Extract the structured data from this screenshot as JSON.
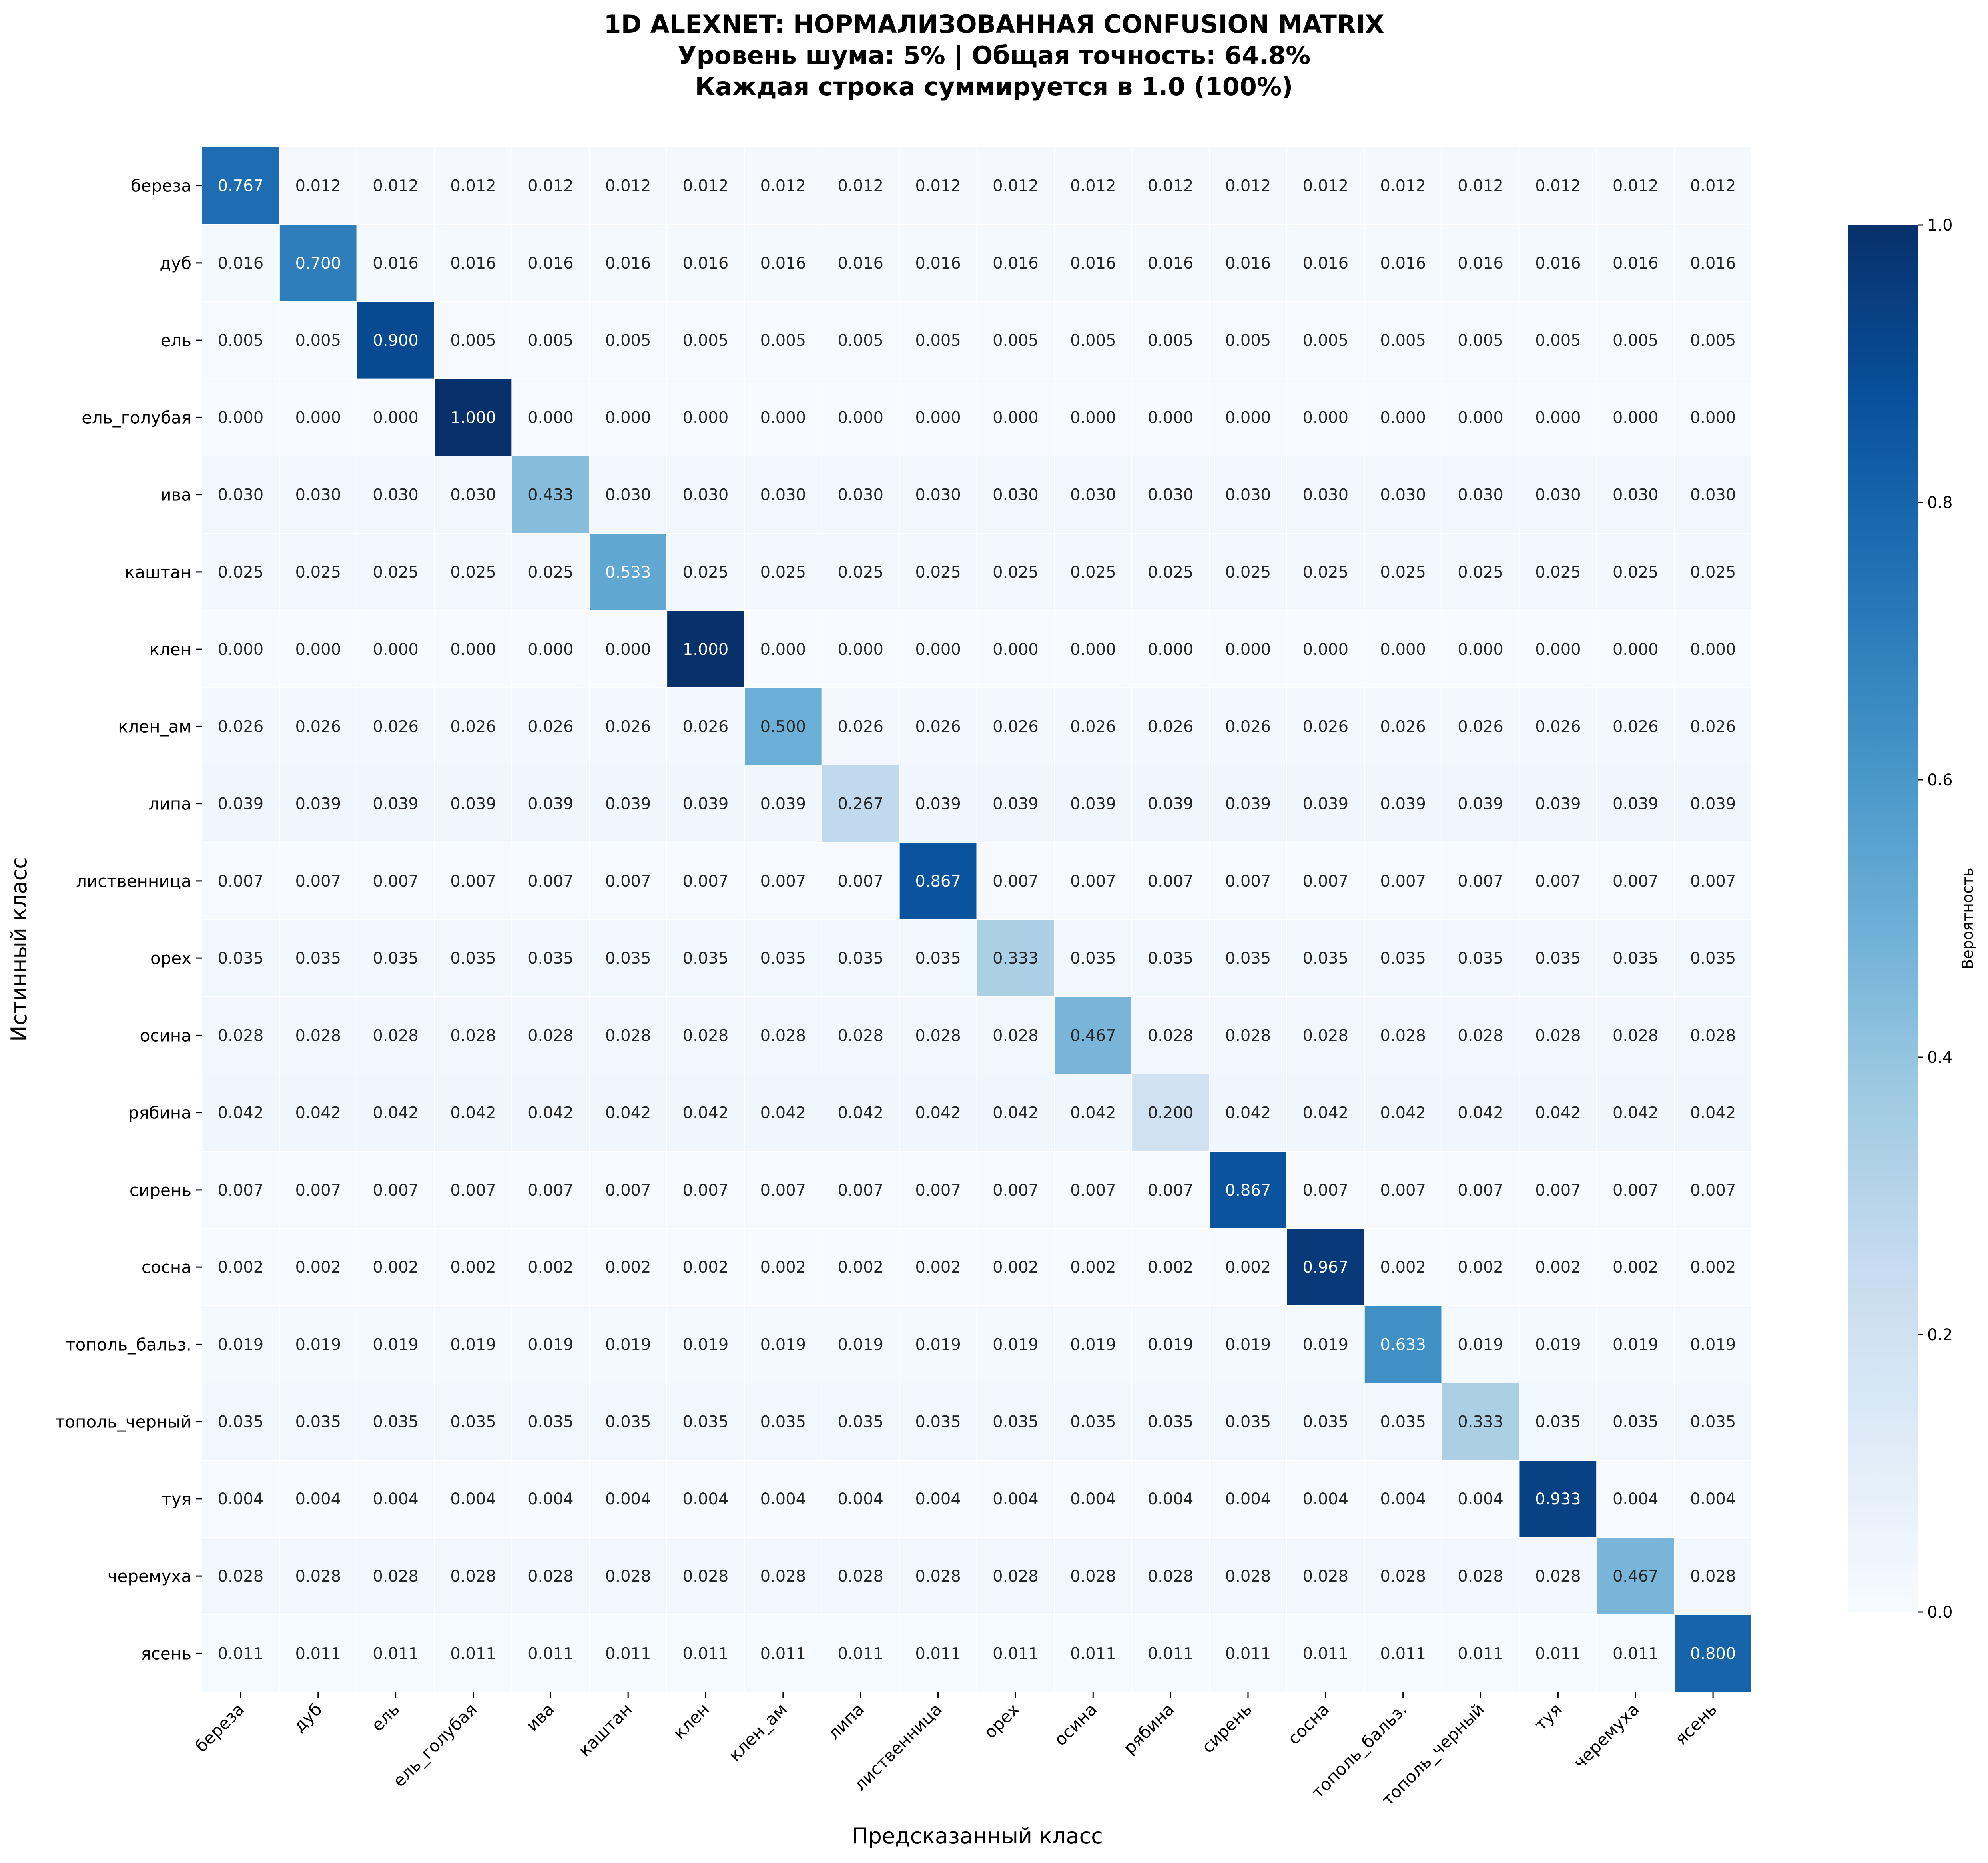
{
  "chart_data": {
    "type": "heatmap",
    "title_lines": [
      "1D ALEXNET: НОРМАЛИЗОВАННАЯ CONFUSION MATRIX",
      "Уровень шума: 5% | Общая точность: 64.8%",
      "Каждая строка суммируется в 1.0 (100%)"
    ],
    "xlabel": "Предсказанный класс",
    "ylabel": "Истинный класс",
    "colorbar_label": "Вероятность",
    "colormap": "Blues",
    "vmin": 0.0,
    "vmax": 1.0,
    "colorbar_ticks": [
      "0.0",
      "0.2",
      "0.4",
      "0.6",
      "0.8",
      "1.0"
    ],
    "classes": [
      "береза",
      "дуб",
      "ель",
      "ель_голубая",
      "ива",
      "каштан",
      "клен",
      "клен_ам",
      "липа",
      "лиственница",
      "орех",
      "осина",
      "рябина",
      "сирень",
      "сосна",
      "тополь_бальз.",
      "тополь_черный",
      "туя",
      "черемуха",
      "ясень"
    ],
    "diagonal": [
      "0.767",
      "0.700",
      "0.900",
      "1.000",
      "0.433",
      "0.533",
      "1.000",
      "0.500",
      "0.267",
      "0.867",
      "0.333",
      "0.467",
      "0.200",
      "0.867",
      "0.967",
      "0.633",
      "0.333",
      "0.933",
      "0.467",
      "0.800"
    ],
    "off_diagonal": [
      "0.012",
      "0.016",
      "0.005",
      "0.000",
      "0.030",
      "0.025",
      "0.000",
      "0.026",
      "0.039",
      "0.007",
      "0.035",
      "0.028",
      "0.042",
      "0.007",
      "0.002",
      "0.019",
      "0.035",
      "0.004",
      "0.028",
      "0.011"
    ]
  }
}
